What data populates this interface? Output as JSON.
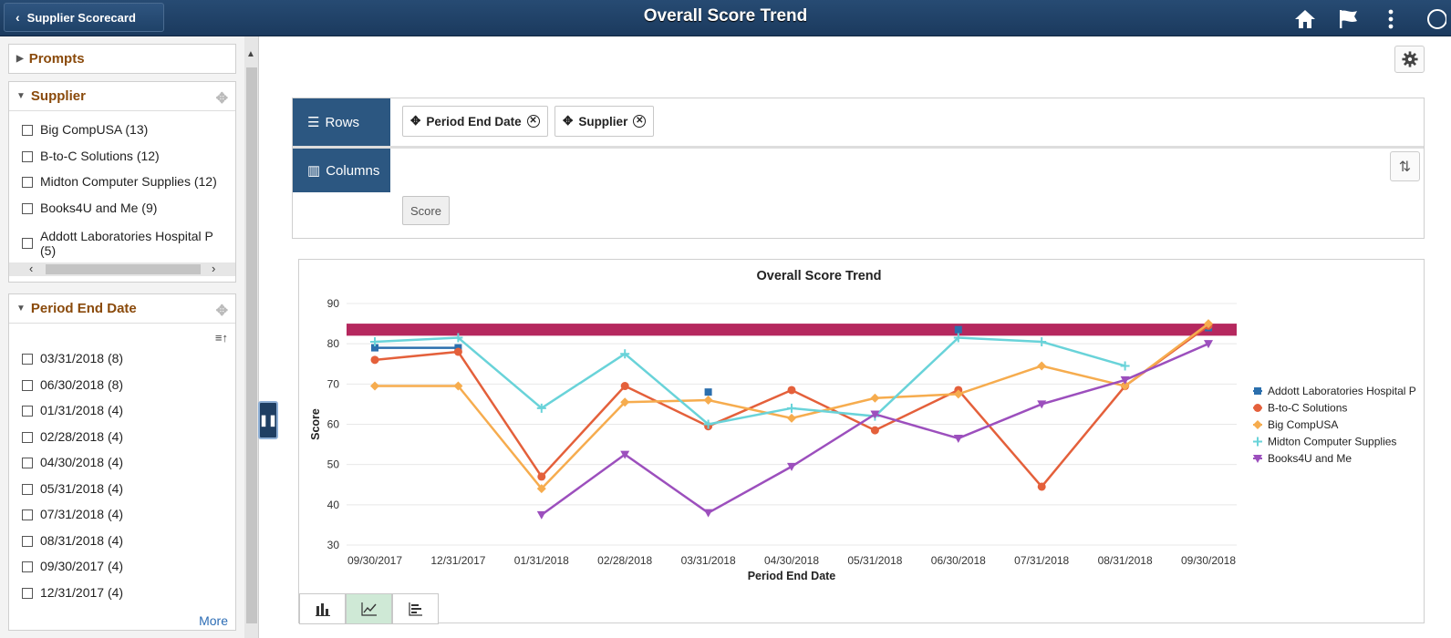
{
  "header": {
    "back_label": "Supplier Scorecard",
    "title": "Overall Score Trend"
  },
  "left_panel": {
    "prompts_label": "Prompts",
    "supplier": {
      "title": "Supplier",
      "items": [
        {
          "label": "Big CompUSA (13)"
        },
        {
          "label": "B-to-C Solutions (12)"
        },
        {
          "label": "Midton Computer Supplies (12)"
        },
        {
          "label": "Books4U and Me (9)"
        },
        {
          "label": "Addott Laboratories Hospital P",
          "label2": "(5)"
        }
      ]
    },
    "period": {
      "title": "Period End Date",
      "items": [
        {
          "label": "03/31/2018 (8)"
        },
        {
          "label": "06/30/2018 (8)"
        },
        {
          "label": "01/31/2018 (4)"
        },
        {
          "label": "02/28/2018 (4)"
        },
        {
          "label": "04/30/2018 (4)"
        },
        {
          "label": "05/31/2018 (4)"
        },
        {
          "label": "07/31/2018 (4)"
        },
        {
          "label": "08/31/2018 (4)"
        },
        {
          "label": "09/30/2017 (4)"
        },
        {
          "label": "12/31/2017 (4)"
        }
      ],
      "more_label": "More"
    }
  },
  "pivot": {
    "rows_label": "Rows",
    "columns_label": "Columns",
    "row_chips": [
      "Period End Date",
      "Supplier"
    ],
    "measure_label": "Score"
  },
  "chart_data": {
    "type": "line",
    "title": "Overall Score Trend",
    "xlabel": "Period End Date",
    "ylabel": "Score",
    "ylim": [
      30,
      90
    ],
    "yticks": [
      30,
      40,
      50,
      60,
      70,
      80,
      90
    ],
    "categories": [
      "09/30/2017",
      "12/31/2017",
      "01/31/2018",
      "02/28/2018",
      "03/31/2018",
      "04/30/2018",
      "05/31/2018",
      "06/30/2018",
      "07/31/2018",
      "08/31/2018",
      "09/30/2018"
    ],
    "target_band": [
      82,
      85
    ],
    "band_color": "#b5285e",
    "legend_position": "right",
    "series": [
      {
        "name": "Addott Laboratories Hospital P",
        "color": "#2b6fad",
        "marker": "square",
        "values": [
          79,
          79,
          null,
          null,
          68,
          null,
          null,
          83.5,
          null,
          null,
          84
        ]
      },
      {
        "name": "B-to-C Solutions",
        "color": "#e4603b",
        "marker": "circle",
        "values": [
          76,
          78,
          47,
          69.5,
          59.5,
          68.5,
          58.5,
          68.5,
          44.5,
          69.5,
          84.5
        ]
      },
      {
        "name": "Big CompUSA",
        "color": "#f6ac4e",
        "marker": "diamond",
        "values": [
          69.5,
          69.5,
          44,
          65.5,
          66,
          61.5,
          66.5,
          67.5,
          74.5,
          69.5,
          85
        ]
      },
      {
        "name": "Midton Computer Supplies",
        "color": "#69d3d9",
        "marker": "plus",
        "values": [
          80.5,
          81.5,
          64,
          77.5,
          60,
          64,
          62,
          81.5,
          80.5,
          74.5,
          null
        ]
      },
      {
        "name": "Books4U and Me",
        "color": "#9c4fbd",
        "marker": "triangle-down",
        "values": [
          null,
          null,
          37.5,
          52.5,
          38,
          49.5,
          62.5,
          56.5,
          65,
          71,
          80
        ]
      }
    ]
  }
}
